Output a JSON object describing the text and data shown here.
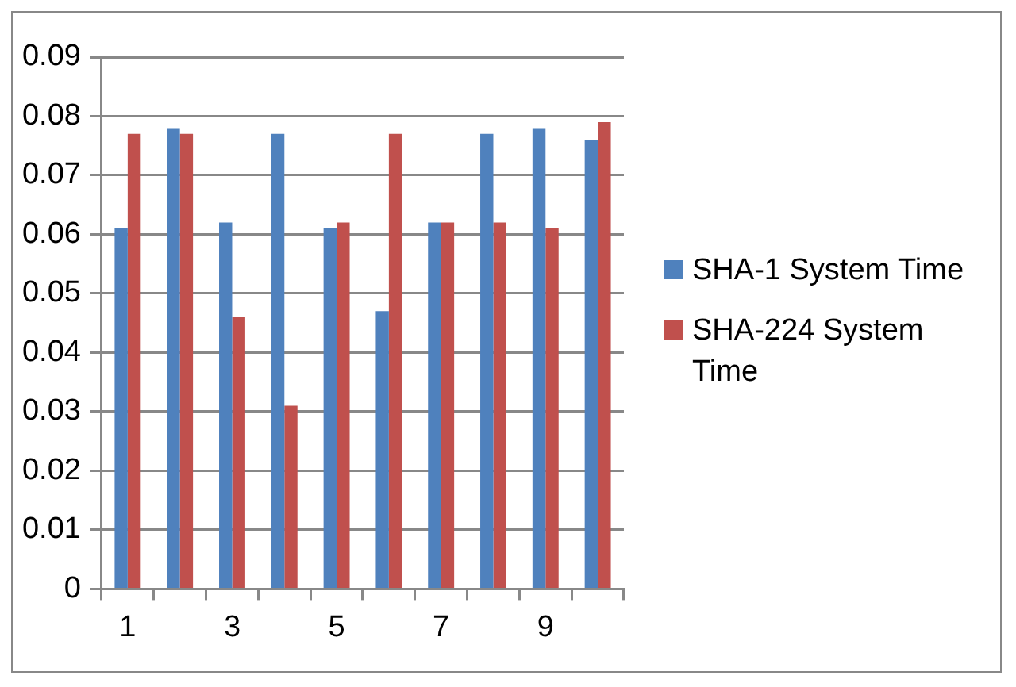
{
  "chart_data": {
    "type": "bar",
    "categories": [
      "1",
      null,
      "3",
      null,
      "5",
      null,
      "7",
      null,
      "9",
      null
    ],
    "series": [
      {
        "name": "SHA-1 System Time",
        "color": "#4f81bd",
        "values": [
          0.061,
          0.078,
          0.062,
          0.077,
          0.061,
          0.047,
          0.062,
          0.077,
          0.078,
          0.076
        ]
      },
      {
        "name": "SHA-224 System Time",
        "color": "#c0504d",
        "values": [
          0.077,
          0.077,
          0.046,
          0.031,
          0.062,
          0.077,
          0.062,
          0.062,
          0.061,
          0.079
        ]
      }
    ],
    "ylim": [
      0,
      0.09
    ],
    "yticks": [
      0,
      0.01,
      0.02,
      0.03,
      0.04,
      0.05,
      0.06,
      0.07,
      0.08,
      0.09
    ],
    "grid": "y",
    "legend": "right"
  }
}
